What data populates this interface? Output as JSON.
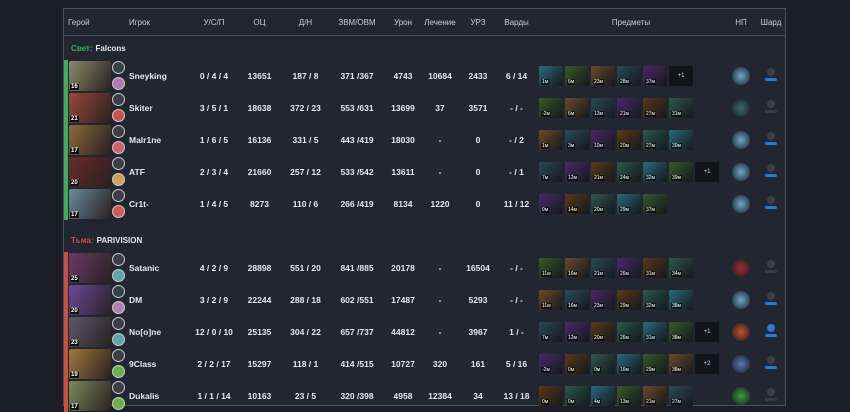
{
  "headers": {
    "hero": "Герой",
    "player": "Игрок",
    "ksp": "У/С/П",
    "networth": "ОЦ",
    "lh_dn": "Д/Н",
    "gpm_xpm": "ЗВМ/ОВМ",
    "damage": "Урон",
    "healing": "Лечение",
    "building": "УРЗ",
    "wards": "Варды",
    "items": "Предметы",
    "np": "НП",
    "shard": "Шард"
  },
  "colors": {
    "radiant": "#3fae5a",
    "dire": "#c9503a",
    "background": "#222631"
  },
  "teams": [
    {
      "side": "Свет:",
      "name": "Falcons",
      "color": "#3fae5a",
      "players": [
        {
          "level": "16",
          "name": "Sneyking",
          "ksp": "0 / 4 / 4",
          "networth": "13651",
          "lh_dn": "187 / 8",
          "gpm_xpm": "371 /367",
          "damage": "4743",
          "healing": "10684",
          "building": "2433",
          "wards": "6 / 14",
          "portrait": "#8a8a6a",
          "talent": "#b07ab0",
          "items": [
            "1м",
            "6м",
            "23м",
            "28м",
            "37м"
          ],
          "extra": "+1",
          "np": "aghanim-icon",
          "np_color": "#6fa8c8",
          "shard": "on"
        },
        {
          "level": "21",
          "name": "Skiter",
          "ksp": "3 / 5 / 1",
          "networth": "18638",
          "lh_dn": "372 / 23",
          "gpm_xpm": "553 /631",
          "damage": "13699",
          "healing": "37",
          "building": "3571",
          "wards": "- / -",
          "portrait": "#9a4a3a",
          "talent": "#d05050",
          "items": [
            "-2м",
            "6м",
            "13м",
            "21м",
            "27м",
            "31м"
          ],
          "extra": "",
          "np": "neutral-orb-icon",
          "np_color": "#3a6a6a",
          "shard": "off"
        },
        {
          "level": "17",
          "name": "Malr1ne",
          "ksp": "1 / 6 / 5",
          "networth": "16136",
          "lh_dn": "331 / 5",
          "gpm_xpm": "443 /419",
          "damage": "18030",
          "healing": "-",
          "building": "0",
          "wards": "- / 2",
          "portrait": "#8a6a3a",
          "talent": "#d06070",
          "items": [
            "1м",
            "3м",
            "10м",
            "20м",
            "27м",
            "30м"
          ],
          "extra": "",
          "np": "aghanim-icon",
          "np_color": "#6fa8c8",
          "shard": "on"
        },
        {
          "level": "20",
          "name": "ATF",
          "ksp": "2 / 3 / 4",
          "networth": "21660",
          "lh_dn": "257 / 12",
          "gpm_xpm": "533 /542",
          "damage": "13611",
          "healing": "-",
          "building": "0",
          "wards": "- / 1",
          "portrait": "#6a2a2a",
          "talent": "#d0a050",
          "items": [
            "7м",
            "12м",
            "21м",
            "24м",
            "32м",
            "39м"
          ],
          "extra": "+1",
          "np": "aghanim-icon",
          "np_color": "#6fa8c8",
          "shard": "on"
        },
        {
          "level": "17",
          "name": "Cr1t-",
          "ksp": "1 / 4 / 5",
          "networth": "8273",
          "lh_dn": "110 / 6",
          "gpm_xpm": "266 /419",
          "damage": "8134",
          "healing": "1220",
          "building": "0",
          "wards": "11 / 12",
          "portrait": "#6a8aa0",
          "talent": "#d05a5a",
          "items": [
            "9м",
            "14м",
            "20м",
            "29м",
            "37м"
          ],
          "extra": "",
          "np": "aghanim-icon",
          "np_color": "#6fa8c8",
          "shard": "on"
        }
      ]
    },
    {
      "side": "Тьма:",
      "name": "PARIVISION",
      "color": "#c9503a",
      "players": [
        {
          "level": "25",
          "name": "Satanic",
          "ksp": "4 / 2 / 9",
          "networth": "28898",
          "lh_dn": "551 / 20",
          "gpm_xpm": "841 /885",
          "damage": "20178",
          "healing": "-",
          "building": "16504",
          "wards": "- / -",
          "portrait": "#6a3a6a",
          "talent": "#5aa8a8",
          "items": [
            "11м",
            "16м",
            "21м",
            "26м",
            "31м",
            "34м"
          ],
          "extra": "",
          "np": "neutral-orb-icon",
          "np_color": "#a02a3a",
          "shard": "off"
        },
        {
          "level": "20",
          "name": "DM",
          "ksp": "3 / 2 / 9",
          "networth": "22244",
          "lh_dn": "288 / 18",
          "gpm_xpm": "602 /551",
          "damage": "17487",
          "healing": "-",
          "building": "5293",
          "wards": "- / -",
          "portrait": "#6a4aa0",
          "talent": "#b080b0",
          "items": [
            "11м",
            "16м",
            "23м",
            "29м",
            "32м",
            "38м"
          ],
          "extra": "",
          "np": "aghanim-icon",
          "np_color": "#6fa8c8",
          "shard": "on"
        },
        {
          "level": "23",
          "name": "No[o]ne",
          "ksp": "12 / 0 / 10",
          "networth": "25135",
          "lh_dn": "304 / 22",
          "gpm_xpm": "657 /737",
          "damage": "44812",
          "healing": "-",
          "building": "3967",
          "wards": "1 / -",
          "portrait": "#5a5a6a",
          "talent": "#5aa8a8",
          "items": [
            "7м",
            "12м",
            "20м",
            "26м",
            "31м",
            "38м"
          ],
          "extra": "+1",
          "np": "neutral-orb-icon",
          "np_color": "#c05020",
          "shard": "full"
        },
        {
          "level": "19",
          "name": "9Class",
          "ksp": "2 / 2 / 17",
          "networth": "15297",
          "lh_dn": "118 / 1",
          "gpm_xpm": "414 /515",
          "damage": "10727",
          "healing": "320",
          "building": "161",
          "wards": "5 / 16",
          "portrait": "#a07a3a",
          "talent": "#6ab04a",
          "items": [
            "-2м",
            "0м",
            "0м",
            "16м",
            "29м",
            "38м"
          ],
          "extra": "+2",
          "np": "neutral-orb-icon",
          "np_color": "#5a7ab0",
          "shard": "on"
        },
        {
          "level": "17",
          "name": "Dukalis",
          "ksp": "1 / 1 / 14",
          "networth": "10163",
          "lh_dn": "23 / 5",
          "gpm_xpm": "320 /398",
          "damage": "4958",
          "healing": "12384",
          "building": "34",
          "wards": "13 / 18",
          "portrait": "#7a8a5a",
          "talent": "#6ab04a",
          "items": [
            "0м",
            "0м",
            "4м",
            "13м",
            "21м",
            "27м"
          ],
          "extra": "",
          "np": "neutral-orb-icon",
          "np_color": "#3a9a3a",
          "shard": "off"
        }
      ]
    }
  ]
}
